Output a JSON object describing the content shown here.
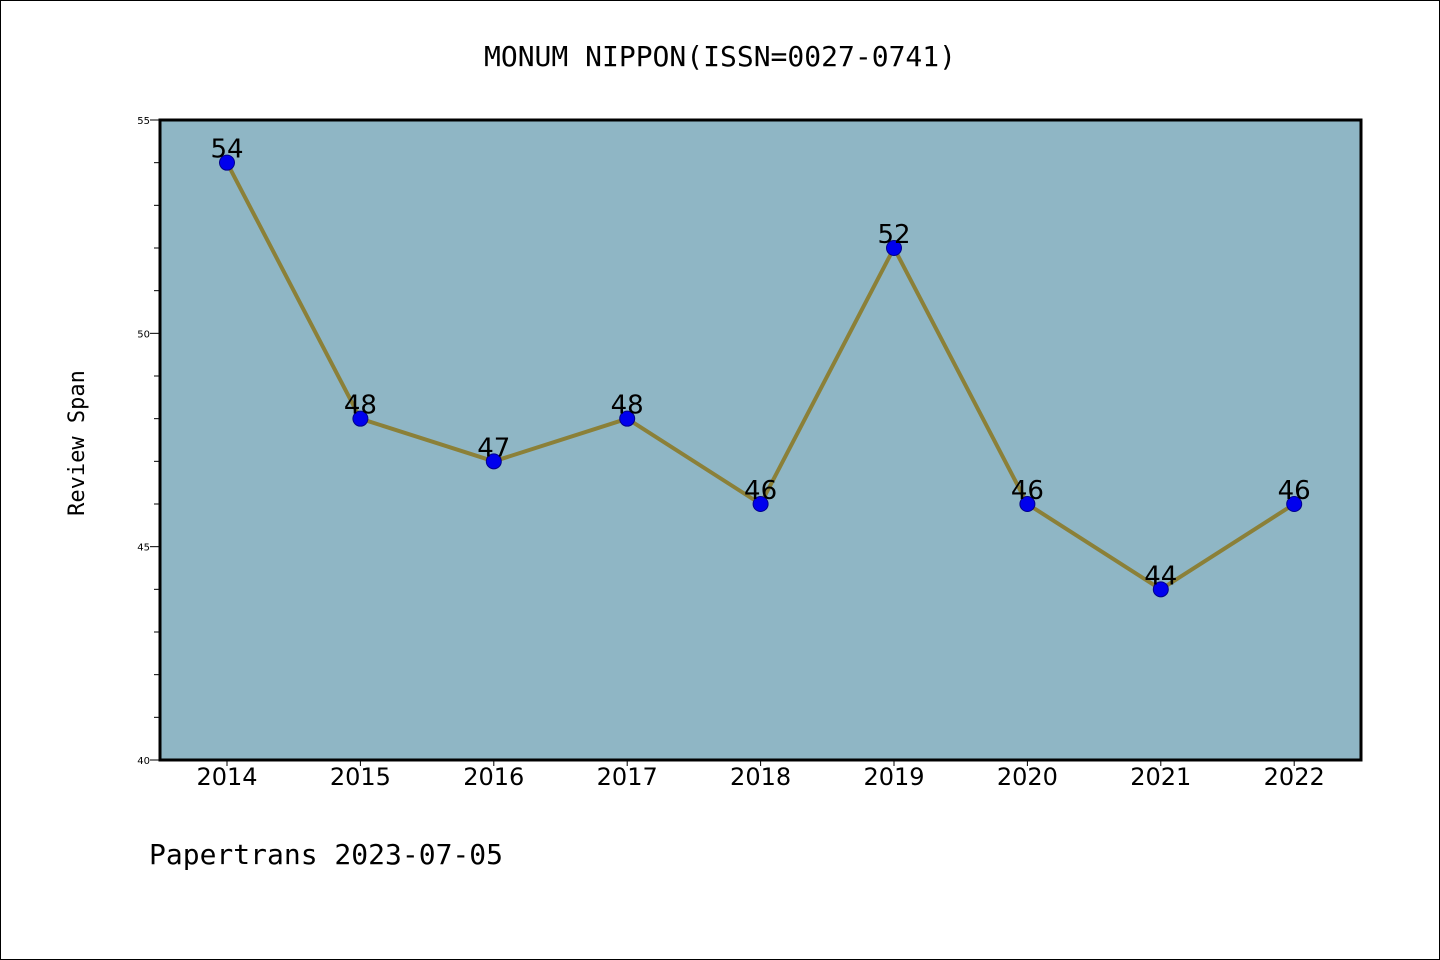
{
  "chart_data": {
    "type": "line",
    "title": "MONUM NIPPON(ISSN=0027-0741)",
    "xlabel": "",
    "ylabel": "Review Span",
    "categories": [
      "2014",
      "2015",
      "2016",
      "2017",
      "2018",
      "2019",
      "2020",
      "2021",
      "2022"
    ],
    "series": [
      {
        "values": [
          54,
          48,
          47,
          48,
          46,
          52,
          46,
          44,
          46
        ]
      }
    ],
    "ylim": [
      40,
      55
    ],
    "y_major_ticks": [
      40,
      45,
      50,
      55
    ],
    "y_minor_step": 1,
    "grid": false,
    "legend": "none",
    "show_data_labels": true,
    "colors": {
      "plot_background": "#8fb6c5",
      "line": "#8b8038",
      "marker_fill": "#0000ee",
      "marker_edge": "#00008b"
    }
  },
  "footer": {
    "text": "Papertrans 2023-07-05"
  }
}
